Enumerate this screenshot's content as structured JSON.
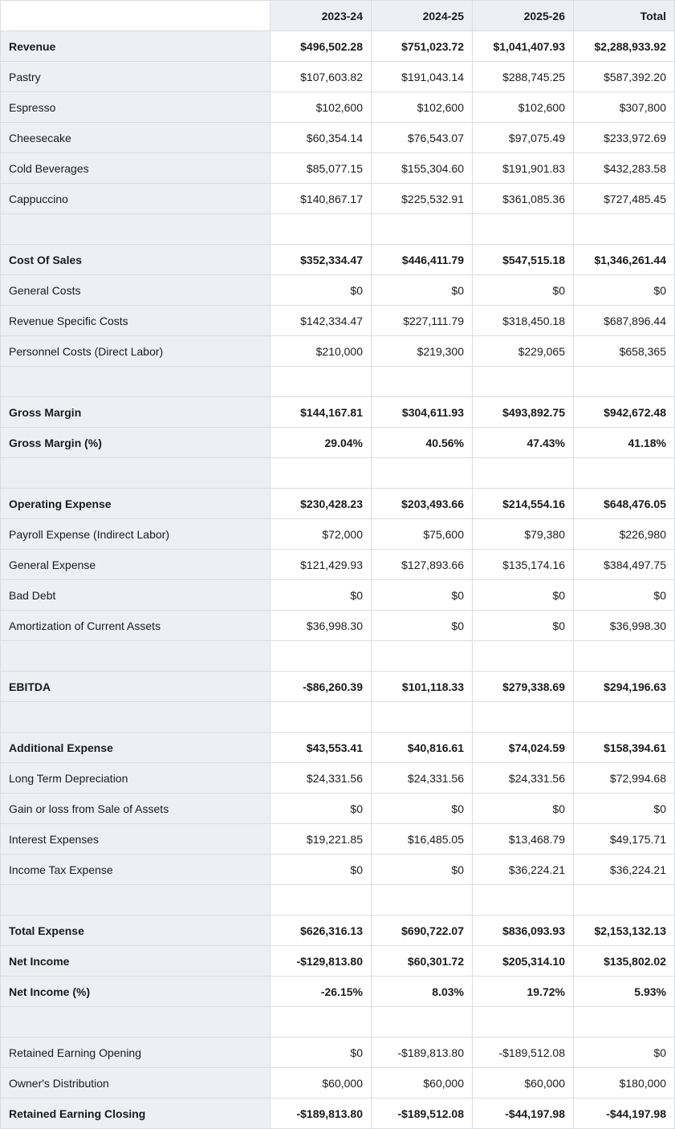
{
  "columns": [
    "2023-24",
    "2024-25",
    "2025-26",
    "Total"
  ],
  "rows": [
    {
      "type": "bold",
      "label": "Revenue",
      "vals": [
        "$496,502.28",
        "$751,023.72",
        "$1,041,407.93",
        "$2,288,933.92"
      ]
    },
    {
      "type": "norm",
      "label": "Pastry",
      "vals": [
        "$107,603.82",
        "$191,043.14",
        "$288,745.25",
        "$587,392.20"
      ]
    },
    {
      "type": "norm",
      "label": "Espresso",
      "vals": [
        "$102,600",
        "$102,600",
        "$102,600",
        "$307,800"
      ]
    },
    {
      "type": "norm",
      "label": "Cheesecake",
      "vals": [
        "$60,354.14",
        "$76,543.07",
        "$97,075.49",
        "$233,972.69"
      ]
    },
    {
      "type": "norm",
      "label": "Cold Beverages",
      "vals": [
        "$85,077.15",
        "$155,304.60",
        "$191,901.83",
        "$432,283.58"
      ]
    },
    {
      "type": "norm",
      "label": "Cappuccino",
      "vals": [
        "$140,867.17",
        "$225,532.91",
        "$361,085.36",
        "$727,485.45"
      ]
    },
    {
      "type": "spacer"
    },
    {
      "type": "bold",
      "label": "Cost Of Sales",
      "vals": [
        "$352,334.47",
        "$446,411.79",
        "$547,515.18",
        "$1,346,261.44"
      ]
    },
    {
      "type": "norm",
      "label": "General Costs",
      "vals": [
        "$0",
        "$0",
        "$0",
        "$0"
      ]
    },
    {
      "type": "norm",
      "label": "Revenue Specific Costs",
      "vals": [
        "$142,334.47",
        "$227,111.79",
        "$318,450.18",
        "$687,896.44"
      ]
    },
    {
      "type": "norm",
      "label": "Personnel Costs (Direct Labor)",
      "vals": [
        "$210,000",
        "$219,300",
        "$229,065",
        "$658,365"
      ]
    },
    {
      "type": "spacer"
    },
    {
      "type": "bold",
      "label": "Gross Margin",
      "vals": [
        "$144,167.81",
        "$304,611.93",
        "$493,892.75",
        "$942,672.48"
      ]
    },
    {
      "type": "bold",
      "label": "Gross Margin (%)",
      "vals": [
        "29.04%",
        "40.56%",
        "47.43%",
        "41.18%"
      ]
    },
    {
      "type": "spacer"
    },
    {
      "type": "bold",
      "label": "Operating Expense",
      "vals": [
        "$230,428.23",
        "$203,493.66",
        "$214,554.16",
        "$648,476.05"
      ]
    },
    {
      "type": "norm",
      "label": "Payroll Expense (Indirect Labor)",
      "vals": [
        "$72,000",
        "$75,600",
        "$79,380",
        "$226,980"
      ]
    },
    {
      "type": "norm",
      "label": "General Expense",
      "vals": [
        "$121,429.93",
        "$127,893.66",
        "$135,174.16",
        "$384,497.75"
      ]
    },
    {
      "type": "norm",
      "label": "Bad Debt",
      "vals": [
        "$0",
        "$0",
        "$0",
        "$0"
      ]
    },
    {
      "type": "norm",
      "label": "Amortization of Current Assets",
      "vals": [
        "$36,998.30",
        "$0",
        "$0",
        "$36,998.30"
      ]
    },
    {
      "type": "spacer"
    },
    {
      "type": "bold",
      "label": "EBITDA",
      "vals": [
        "-$86,260.39",
        "$101,118.33",
        "$279,338.69",
        "$294,196.63"
      ]
    },
    {
      "type": "spacer"
    },
    {
      "type": "bold",
      "label": "Additional Expense",
      "vals": [
        "$43,553.41",
        "$40,816.61",
        "$74,024.59",
        "$158,394.61"
      ]
    },
    {
      "type": "norm",
      "label": "Long Term Depreciation",
      "vals": [
        "$24,331.56",
        "$24,331.56",
        "$24,331.56",
        "$72,994.68"
      ]
    },
    {
      "type": "norm",
      "label": "Gain or loss from Sale of Assets",
      "vals": [
        "$0",
        "$0",
        "$0",
        "$0"
      ]
    },
    {
      "type": "norm",
      "label": "Interest Expenses",
      "vals": [
        "$19,221.85",
        "$16,485.05",
        "$13,468.79",
        "$49,175.71"
      ]
    },
    {
      "type": "norm",
      "label": "Income Tax Expense",
      "vals": [
        "$0",
        "$0",
        "$36,224.21",
        "$36,224.21"
      ]
    },
    {
      "type": "spacer"
    },
    {
      "type": "bold",
      "label": "Total Expense",
      "vals": [
        "$626,316.13",
        "$690,722.07",
        "$836,093.93",
        "$2,153,132.13"
      ]
    },
    {
      "type": "bold",
      "label": "Net Income",
      "vals": [
        "-$129,813.80",
        "$60,301.72",
        "$205,314.10",
        "$135,802.02"
      ]
    },
    {
      "type": "bold",
      "label": "Net Income (%)",
      "vals": [
        "-26.15%",
        "8.03%",
        "19.72%",
        "5.93%"
      ]
    },
    {
      "type": "spacer"
    },
    {
      "type": "norm",
      "label": "Retained Earning Opening",
      "vals": [
        "$0",
        "-$189,813.80",
        "-$189,512.08",
        "$0"
      ]
    },
    {
      "type": "norm",
      "label": "Owner's Distribution",
      "vals": [
        "$60,000",
        "$60,000",
        "$60,000",
        "$180,000"
      ]
    },
    {
      "type": "bold",
      "label": "Retained Earning Closing",
      "vals": [
        "-$189,813.80",
        "-$189,512.08",
        "-$44,197.98",
        "-$44,197.98"
      ]
    }
  ]
}
